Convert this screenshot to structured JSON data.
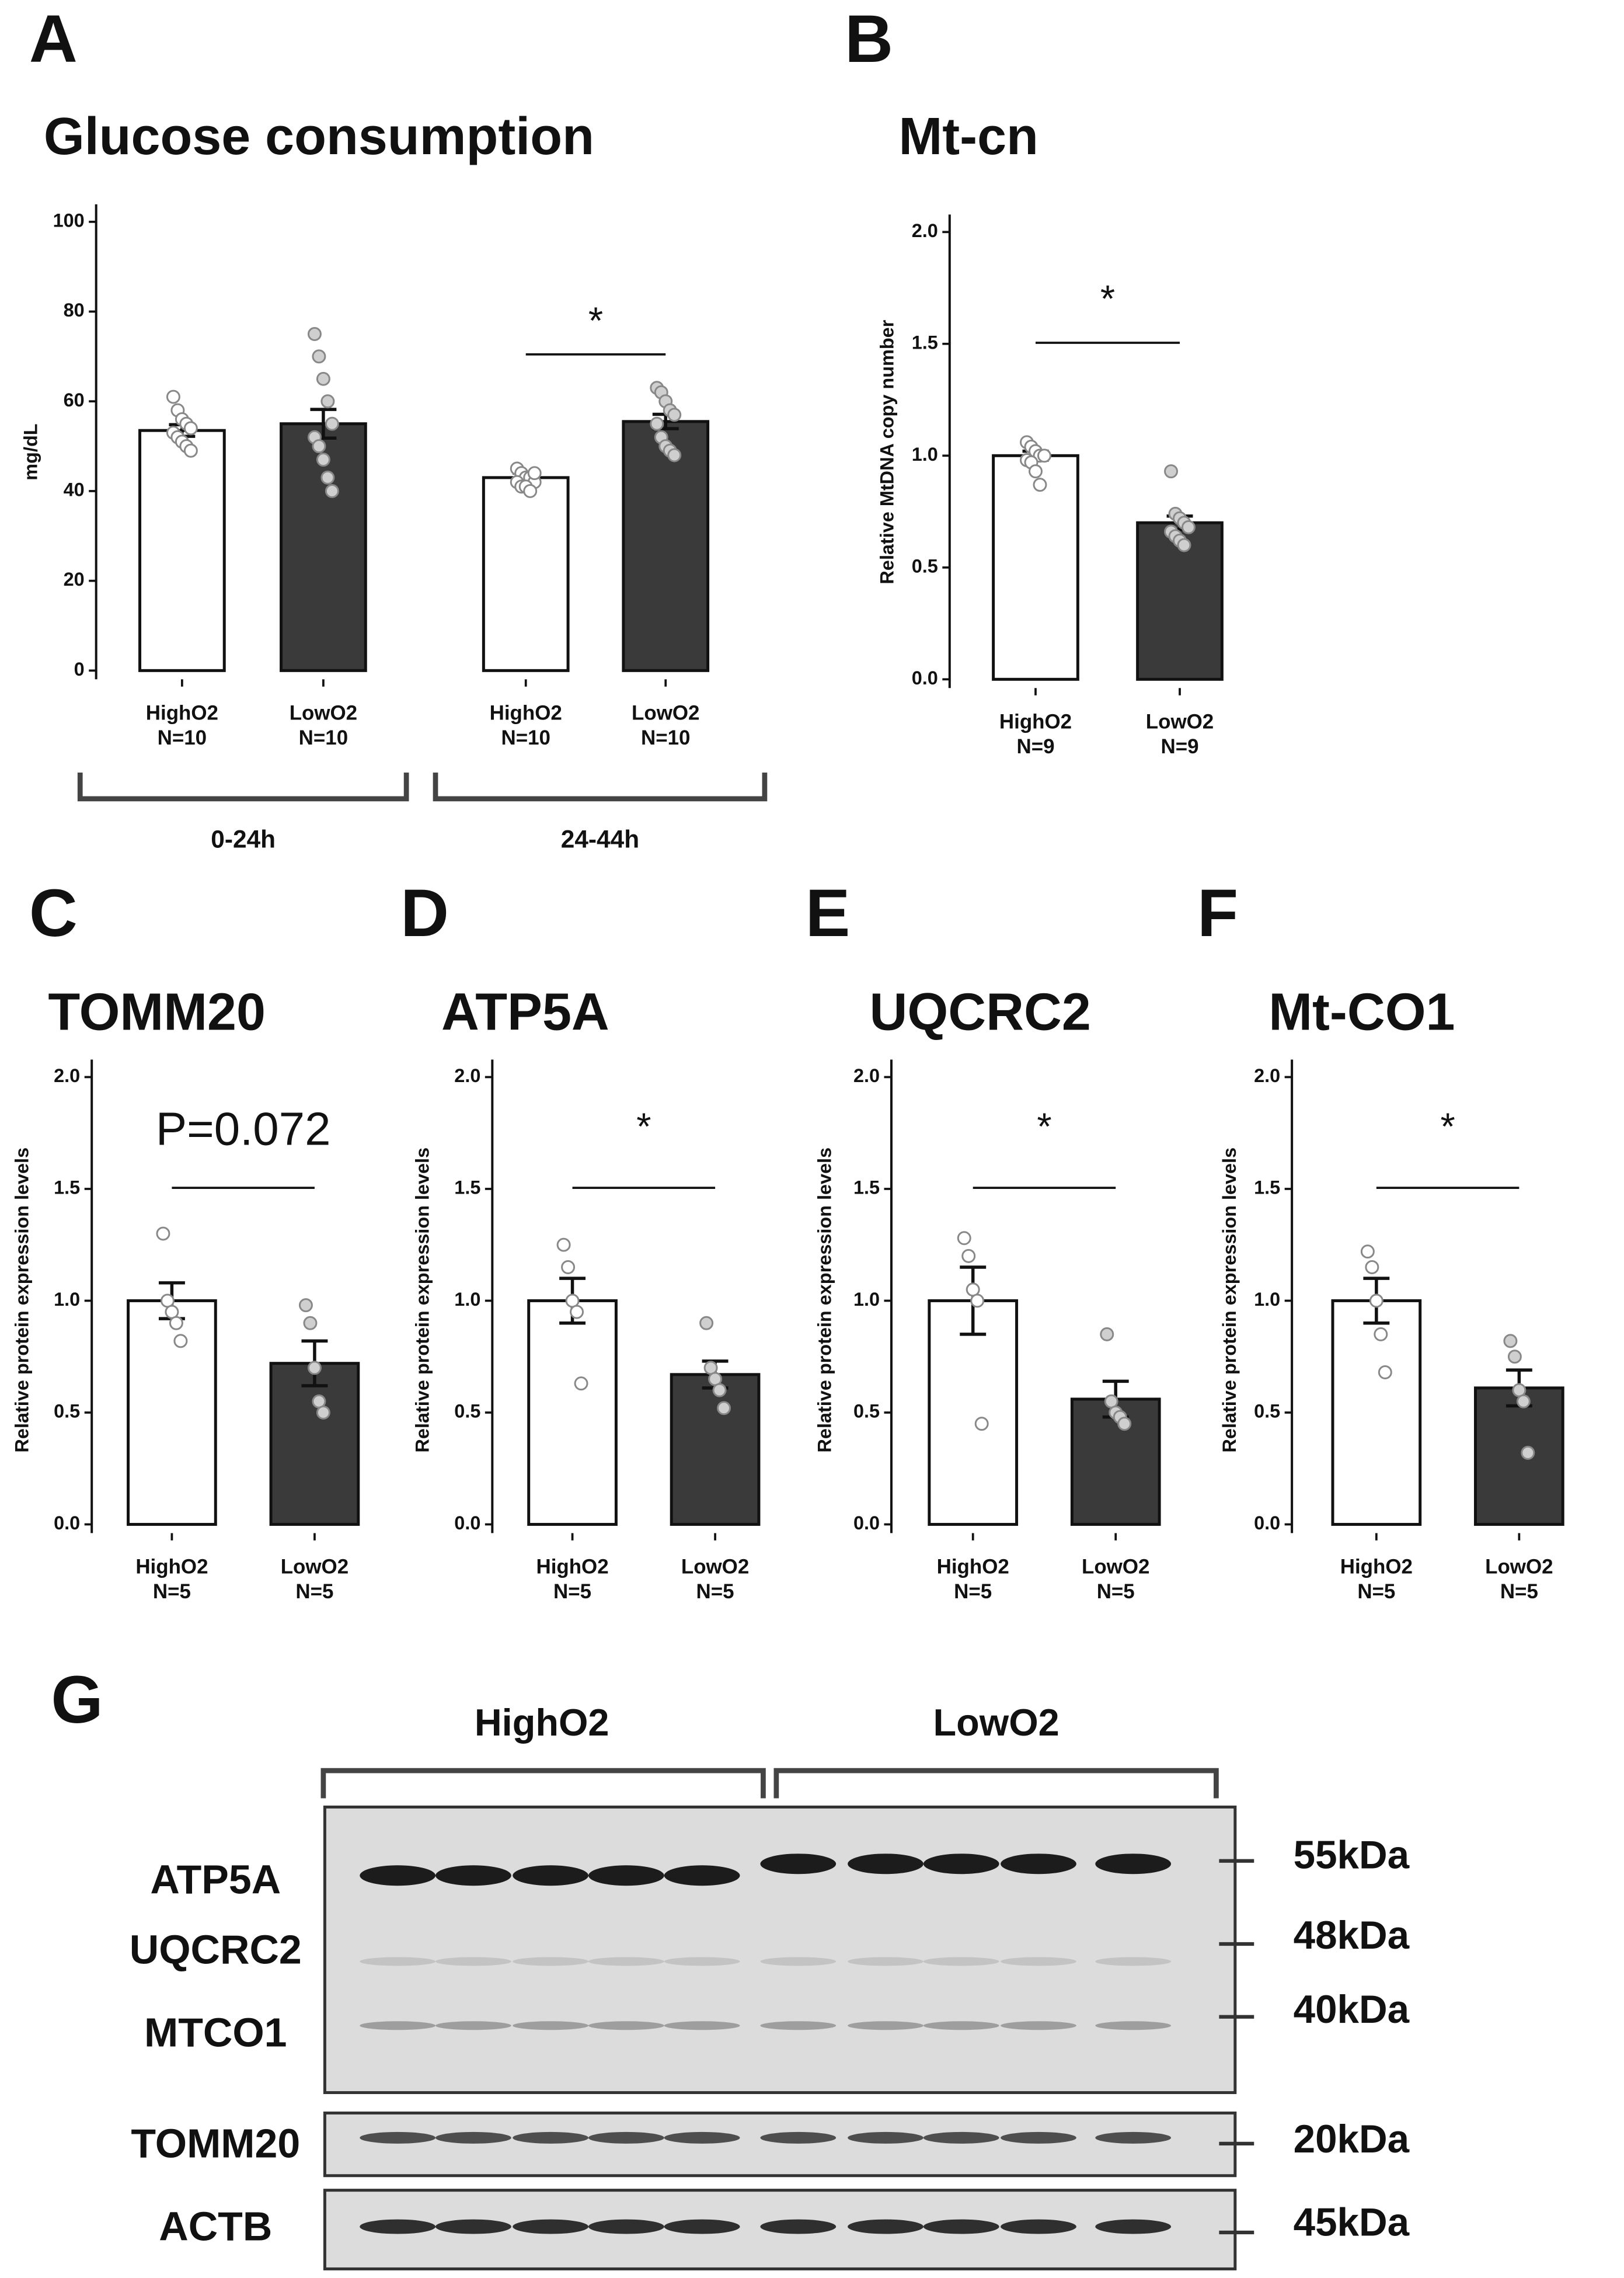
{
  "chart_data": [
    {
      "type": "bar",
      "panel": "A",
      "title": "Glucose consumption",
      "y_label": "mg/dL",
      "categories": [
        "HighO2",
        "LowO2",
        "HighO2",
        "LowO2"
      ],
      "category_n": [
        "N=10",
        "N=10",
        "N=10",
        "N=10"
      ],
      "groups": [
        "0-24h",
        "24-44h"
      ],
      "values": [
        53.5,
        55,
        43,
        55.5
      ],
      "errors": [
        1.3,
        3.2,
        1,
        1.6
      ],
      "colors": [
        "#ffffff",
        "#3a3a3a",
        "#ffffff",
        "#3a3a3a"
      ],
      "points": [
        [
          61,
          58,
          56,
          55,
          54,
          53,
          52,
          51,
          50,
          49
        ],
        [
          75,
          70,
          65,
          60,
          55,
          52,
          50,
          47,
          43,
          40
        ],
        [
          45,
          44,
          43,
          43,
          42,
          42,
          41,
          41,
          40,
          44
        ],
        [
          63,
          62,
          60,
          58,
          57,
          55,
          52,
          50,
          49,
          48
        ]
      ],
      "ylim": [
        0,
        100
      ],
      "yticks": [
        0,
        20,
        40,
        60,
        80,
        100
      ],
      "annotations": [
        {
          "text": "*",
          "from": 2,
          "to": 3
        }
      ]
    },
    {
      "type": "bar",
      "panel": "B",
      "title": "Mt-cn",
      "y_label": "Relative MtDNA copy number",
      "categories": [
        "HighO2",
        "LowO2"
      ],
      "category_n": [
        "N=9",
        "N=9"
      ],
      "values": [
        1.0,
        0.7
      ],
      "errors": [
        0.02,
        0.03
      ],
      "colors": [
        "#ffffff",
        "#3a3a3a"
      ],
      "points": [
        [
          1.06,
          1.04,
          1.02,
          1.0,
          1.0,
          0.98,
          0.97,
          0.93,
          0.87
        ],
        [
          0.93,
          0.74,
          0.72,
          0.7,
          0.68,
          0.66,
          0.64,
          0.62,
          0.6
        ]
      ],
      "ylim": [
        0,
        2
      ],
      "yticks": [
        {
          "value": 0,
          "label": "0.0"
        },
        {
          "value": 0.5,
          "label": "0.5"
        },
        {
          "value": 1,
          "label": "1.0"
        },
        {
          "value": 1.5,
          "label": "1.5"
        },
        {
          "value": 2,
          "label": "2.0"
        }
      ],
      "annotations": [
        {
          "text": "*",
          "from": 0,
          "to": 1
        }
      ]
    },
    {
      "type": "bar",
      "panel": "C",
      "title": "TOMM20",
      "y_label": "Relative protein expression levels",
      "categories": [
        "HighO2",
        "LowO2"
      ],
      "category_n": [
        "N=5",
        "N=5"
      ],
      "values": [
        1.0,
        0.72
      ],
      "errors": [
        0.08,
        0.1
      ],
      "colors": [
        "#ffffff",
        "#3a3a3a"
      ],
      "points": [
        [
          1.3,
          1.0,
          0.95,
          0.9,
          0.82
        ],
        [
          0.98,
          0.9,
          0.7,
          0.55,
          0.5
        ]
      ],
      "ylim": [
        0,
        2
      ],
      "yticks": [
        {
          "value": 0,
          "label": "0.0"
        },
        {
          "value": 0.5,
          "label": "0.5"
        },
        {
          "value": 1,
          "label": "1.0"
        },
        {
          "value": 1.5,
          "label": "1.5"
        },
        {
          "value": 2,
          "label": "2.0"
        }
      ],
      "annotations": [
        {
          "text": "P=0.072",
          "from": 0,
          "to": 1
        }
      ]
    },
    {
      "type": "bar",
      "panel": "D",
      "title": "ATP5A",
      "y_label": "Relative protein expression levels",
      "categories": [
        "HighO2",
        "LowO2"
      ],
      "category_n": [
        "N=5",
        "N=5"
      ],
      "values": [
        1.0,
        0.67
      ],
      "errors": [
        0.1,
        0.06
      ],
      "colors": [
        "#ffffff",
        "#3a3a3a"
      ],
      "points": [
        [
          1.25,
          1.15,
          1.0,
          0.95,
          0.63
        ],
        [
          0.9,
          0.7,
          0.65,
          0.6,
          0.52
        ]
      ],
      "ylim": [
        0,
        2
      ],
      "yticks": [
        {
          "value": 0,
          "label": "0.0"
        },
        {
          "value": 0.5,
          "label": "0.5"
        },
        {
          "value": 1,
          "label": "1.0"
        },
        {
          "value": 1.5,
          "label": "1.5"
        },
        {
          "value": 2,
          "label": "2.0"
        }
      ],
      "annotations": [
        {
          "text": "*",
          "from": 0,
          "to": 1
        }
      ]
    },
    {
      "type": "bar",
      "panel": "E",
      "title": "UQCRC2",
      "y_label": "Relative protein expression levels",
      "categories": [
        "HighO2",
        "LowO2"
      ],
      "category_n": [
        "N=5",
        "N=5"
      ],
      "values": [
        1.0,
        0.56
      ],
      "errors": [
        0.15,
        0.08
      ],
      "colors": [
        "#ffffff",
        "#3a3a3a"
      ],
      "points": [
        [
          1.28,
          1.2,
          1.05,
          1.0,
          0.45
        ],
        [
          0.85,
          0.55,
          0.5,
          0.48,
          0.45
        ]
      ],
      "ylim": [
        0,
        2
      ],
      "yticks": [
        {
          "value": 0,
          "label": "0.0"
        },
        {
          "value": 0.5,
          "label": "0.5"
        },
        {
          "value": 1,
          "label": "1.0"
        },
        {
          "value": 1.5,
          "label": "1.5"
        },
        {
          "value": 2,
          "label": "2.0"
        }
      ],
      "annotations": [
        {
          "text": "*",
          "from": 0,
          "to": 1
        }
      ]
    },
    {
      "type": "bar",
      "panel": "F",
      "title": "Mt-CO1",
      "y_label": "Relative protein expression levels",
      "categories": [
        "HighO2",
        "LowO2"
      ],
      "category_n": [
        "N=5",
        "N=5"
      ],
      "values": [
        1.0,
        0.61
      ],
      "errors": [
        0.1,
        0.08
      ],
      "colors": [
        "#ffffff",
        "#3a3a3a"
      ],
      "points": [
        [
          1.22,
          1.15,
          1.0,
          0.85,
          0.68
        ],
        [
          0.82,
          0.75,
          0.6,
          0.55,
          0.32
        ]
      ],
      "ylim": [
        0,
        2
      ],
      "yticks": [
        {
          "value": 0,
          "label": "0.0"
        },
        {
          "value": 0.5,
          "label": "0.5"
        },
        {
          "value": 1,
          "label": "1.0"
        },
        {
          "value": 1.5,
          "label": "1.5"
        },
        {
          "value": 2,
          "label": "2.0"
        }
      ],
      "annotations": [
        {
          "text": "*",
          "from": 0,
          "to": 1
        }
      ]
    }
  ],
  "blot": {
    "panel": "G",
    "groups": [
      "HighO2",
      "LowO2"
    ],
    "proteins": [
      "ATP5A",
      "UQCRC2",
      "MTCO1",
      "TOMM20",
      "ACTB"
    ],
    "markers": [
      "55kDa",
      "48kDa",
      "40kDa",
      "20kDa",
      "45kDa"
    ]
  }
}
